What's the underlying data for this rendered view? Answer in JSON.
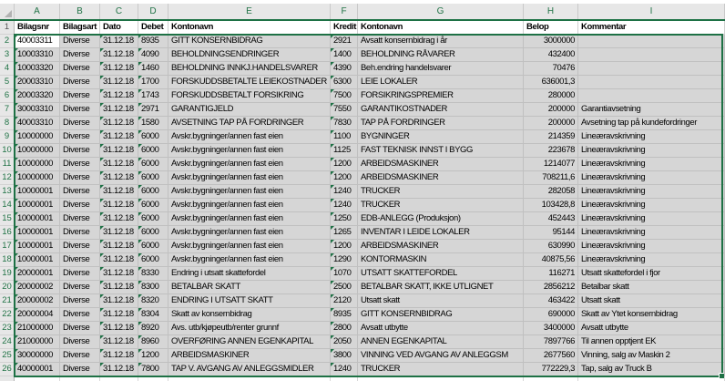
{
  "sheet": {
    "column_letters": [
      "A",
      "B",
      "C",
      "D",
      "E",
      "F",
      "G",
      "H",
      "I"
    ],
    "headers": {
      "row_num": "1",
      "cells": [
        "Bilagsnr",
        "Bilagsart",
        "Dato",
        "Debet",
        "Kontonavn",
        "Kredit",
        "Kontonavn",
        "Belop",
        "Kommentar"
      ]
    },
    "active_cell": "A2",
    "rows": [
      {
        "n": "2",
        "bilagsnr": "40003311",
        "bilagsart": "Diverse",
        "dato": "31.12.18",
        "debet": "8935",
        "kontonavn_debet": "GITT KONSERNBIDRAG",
        "kredit": "2921",
        "kontonavn_kredit": "Avsatt konsernbidrag i år",
        "belop": "3000000",
        "kommentar": ""
      },
      {
        "n": "3",
        "bilagsnr": "10003310",
        "bilagsart": "Diverse",
        "dato": "31.12.18",
        "debet": "4090",
        "kontonavn_debet": "BEHOLDNINGSENDRINGER",
        "kredit": "1400",
        "kontonavn_kredit": "BEHOLDNING RÅVARER",
        "belop": "432400",
        "kommentar": ""
      },
      {
        "n": "4",
        "bilagsnr": "10003320",
        "bilagsart": "Diverse",
        "dato": "31.12.18",
        "debet": "1460",
        "kontonavn_debet": "BEHOLDNING INNKJ.HANDELSVARER",
        "kredit": "4390",
        "kontonavn_kredit": "Beh.endring handelsvarer",
        "belop": "70476",
        "kommentar": ""
      },
      {
        "n": "5",
        "bilagsnr": "20003310",
        "bilagsart": "Diverse",
        "dato": "31.12.18",
        "debet": "1700",
        "kontonavn_debet": "FORSKUDDSBETALTE LEIEKOSTNADER",
        "kredit": "6300",
        "kontonavn_kredit": "LEIE LOKALER",
        "belop": "636001,3",
        "kommentar": ""
      },
      {
        "n": "6",
        "bilagsnr": "20003320",
        "bilagsart": "Diverse",
        "dato": "31.12.18",
        "debet": "1743",
        "kontonavn_debet": "FORSKUDDSBETALT FORSIKRING",
        "kredit": "7500",
        "kontonavn_kredit": "FORSIKRINGSPREMIER",
        "belop": "280000",
        "kommentar": ""
      },
      {
        "n": "7",
        "bilagsnr": "30003310",
        "bilagsart": "Diverse",
        "dato": "31.12.18",
        "debet": "2971",
        "kontonavn_debet": "GARANTIGJELD",
        "kredit": "7550",
        "kontonavn_kredit": "GARANTIKOSTNADER",
        "belop": "200000",
        "kommentar": "Garantiavsetning"
      },
      {
        "n": "8",
        "bilagsnr": "40003310",
        "bilagsart": "Diverse",
        "dato": "31.12.18",
        "debet": "1580",
        "kontonavn_debet": "AVSETNING TAP PÅ FORDRINGER",
        "kredit": "7830",
        "kontonavn_kredit": "TAP PÅ FORDRINGER",
        "belop": "200000",
        "kommentar": "Avsetning tap på kundefordringer"
      },
      {
        "n": "9",
        "bilagsnr": "10000000",
        "bilagsart": "Diverse",
        "dato": "31.12.18",
        "debet": "6000",
        "kontonavn_debet": "Avskr.bygninger/annen fast eien",
        "kredit": "1100",
        "kontonavn_kredit": "BYGNINGER",
        "belop": "214359",
        "kommentar": "Lineæravskrivning"
      },
      {
        "n": "10",
        "bilagsnr": "10000000",
        "bilagsart": "Diverse",
        "dato": "31.12.18",
        "debet": "6000",
        "kontonavn_debet": "Avskr.bygninger/annen fast eien",
        "kredit": "1125",
        "kontonavn_kredit": "FAST TEKNISK INNST I BYGG",
        "belop": "223678",
        "kommentar": "Lineæravskrivning"
      },
      {
        "n": "11",
        "bilagsnr": "10000000",
        "bilagsart": "Diverse",
        "dato": "31.12.18",
        "debet": "6000",
        "kontonavn_debet": "Avskr.bygninger/annen fast eien",
        "kredit": "1200",
        "kontonavn_kredit": "ARBEIDSMASKINER",
        "belop": "1214077",
        "kommentar": "Lineæravskrivning"
      },
      {
        "n": "12",
        "bilagsnr": "10000000",
        "bilagsart": "Diverse",
        "dato": "31.12.18",
        "debet": "6000",
        "kontonavn_debet": "Avskr.bygninger/annen fast eien",
        "kredit": "1200",
        "kontonavn_kredit": "ARBEIDSMASKINER",
        "belop": "708211,6",
        "kommentar": "Lineæravskrivning"
      },
      {
        "n": "13",
        "bilagsnr": "10000001",
        "bilagsart": "Diverse",
        "dato": "31.12.18",
        "debet": "6000",
        "kontonavn_debet": "Avskr.bygninger/annen fast eien",
        "kredit": "1240",
        "kontonavn_kredit": "TRUCKER",
        "belop": "282058",
        "kommentar": "Lineæravskrivning"
      },
      {
        "n": "14",
        "bilagsnr": "10000001",
        "bilagsart": "Diverse",
        "dato": "31.12.18",
        "debet": "6000",
        "kontonavn_debet": "Avskr.bygninger/annen fast eien",
        "kredit": "1240",
        "kontonavn_kredit": "TRUCKER",
        "belop": "103428,8",
        "kommentar": "Lineæravskrivning"
      },
      {
        "n": "15",
        "bilagsnr": "10000001",
        "bilagsart": "Diverse",
        "dato": "31.12.18",
        "debet": "6000",
        "kontonavn_debet": "Avskr.bygninger/annen fast eien",
        "kredit": "1250",
        "kontonavn_kredit": "EDB-ANLEGG (Produksjon)",
        "belop": "452443",
        "kommentar": "Lineæravskrivning"
      },
      {
        "n": "16",
        "bilagsnr": "10000001",
        "bilagsart": "Diverse",
        "dato": "31.12.18",
        "debet": "6000",
        "kontonavn_debet": "Avskr.bygninger/annen fast eien",
        "kredit": "1265",
        "kontonavn_kredit": "INVENTAR I LEIDE LOKALER",
        "belop": "95144",
        "kommentar": "Lineæravskrivning"
      },
      {
        "n": "17",
        "bilagsnr": "10000001",
        "bilagsart": "Diverse",
        "dato": "31.12.18",
        "debet": "6000",
        "kontonavn_debet": "Avskr.bygninger/annen fast eien",
        "kredit": "1200",
        "kontonavn_kredit": "ARBEIDSMASKINER",
        "belop": "630990",
        "kommentar": "Lineæravskrivning"
      },
      {
        "n": "18",
        "bilagsnr": "10000001",
        "bilagsart": "Diverse",
        "dato": "31.12.18",
        "debet": "6000",
        "kontonavn_debet": "Avskr.bygninger/annen fast eien",
        "kredit": "1290",
        "kontonavn_kredit": "KONTORMASKIN",
        "belop": "40875,56",
        "kommentar": "Lineæravskrivning"
      },
      {
        "n": "19",
        "bilagsnr": "20000001",
        "bilagsart": "Diverse",
        "dato": "31.12.18",
        "debet": "8330",
        "kontonavn_debet": "Endring i utsatt skattefordel",
        "kredit": "1070",
        "kontonavn_kredit": "UTSATT SKATTEFORDEL",
        "belop": "116271",
        "kommentar": "Utsatt skattefordel i fjor"
      },
      {
        "n": "20",
        "bilagsnr": "20000002",
        "bilagsart": "Diverse",
        "dato": "31.12.18",
        "debet": "8300",
        "kontonavn_debet": "BETALBAR SKATT",
        "kredit": "2500",
        "kontonavn_kredit": "BETALBAR SKATT, IKKE UTLIGNET",
        "belop": "2856212",
        "kommentar": "Betalbar skatt"
      },
      {
        "n": "21",
        "bilagsnr": "20000002",
        "bilagsart": "Diverse",
        "dato": "31.12.18",
        "debet": "8320",
        "kontonavn_debet": "ENDRING I UTSATT SKATT",
        "kredit": "2120",
        "kontonavn_kredit": "Utsatt skatt",
        "belop": "463422",
        "kommentar": "Utsatt skatt"
      },
      {
        "n": "22",
        "bilagsnr": "20000004",
        "bilagsart": "Diverse",
        "dato": "31.12.18",
        "debet": "8304",
        "kontonavn_debet": "Skatt av konsernbidrag",
        "kredit": "8935",
        "kontonavn_kredit": "GITT KONSERNBIDRAG",
        "belop": "690000",
        "kommentar": "Skatt av Ytet konsernbidrag"
      },
      {
        "n": "23",
        "bilagsnr": "21000000",
        "bilagsart": "Diverse",
        "dato": "31.12.18",
        "debet": "8920",
        "kontonavn_debet": "Avs. utb/kjøpeutb/renter grunnf",
        "kredit": "2800",
        "kontonavn_kredit": "Avsatt utbytte",
        "belop": "3400000",
        "kommentar": "Avsatt utbytte"
      },
      {
        "n": "24",
        "bilagsnr": "21000000",
        "bilagsart": "Diverse",
        "dato": "31.12.18",
        "debet": "8960",
        "kontonavn_debet": "OVERFØRING ANNEN EGENKAPITAL",
        "kredit": "2050",
        "kontonavn_kredit": "ANNEN EGENKAPITAL",
        "belop": "7897766",
        "kommentar": "Til annen opptjent EK"
      },
      {
        "n": "25",
        "bilagsnr": "30000000",
        "bilagsart": "Diverse",
        "dato": "31.12.18",
        "debet": "1200",
        "kontonavn_debet": "ARBEIDSMASKINER",
        "kredit": "3800",
        "kontonavn_kredit": "VINNING VED AVGANG AV ANLEGGSM",
        "belop": "2677560",
        "kommentar": "Vinning, salg av Maskin 2"
      },
      {
        "n": "26",
        "bilagsnr": "40000001",
        "bilagsart": "Diverse",
        "dato": "31.12.18",
        "debet": "7800",
        "kontonavn_debet": "TAP V. AVGANG AV ANLEGGSMIDLER",
        "kredit": "1240",
        "kontonavn_kredit": "TRUCKER",
        "belop": "772229,3",
        "kommentar": "Tap, salg av Truck B"
      }
    ],
    "colors": {
      "selection_border": "#1e7145",
      "selected_fill": "#d6d6d6",
      "header_bg": "#e7e7e7",
      "header_text": "#217346",
      "error_triangle": "#1e7145",
      "gridline": "#c0c0c0"
    }
  }
}
